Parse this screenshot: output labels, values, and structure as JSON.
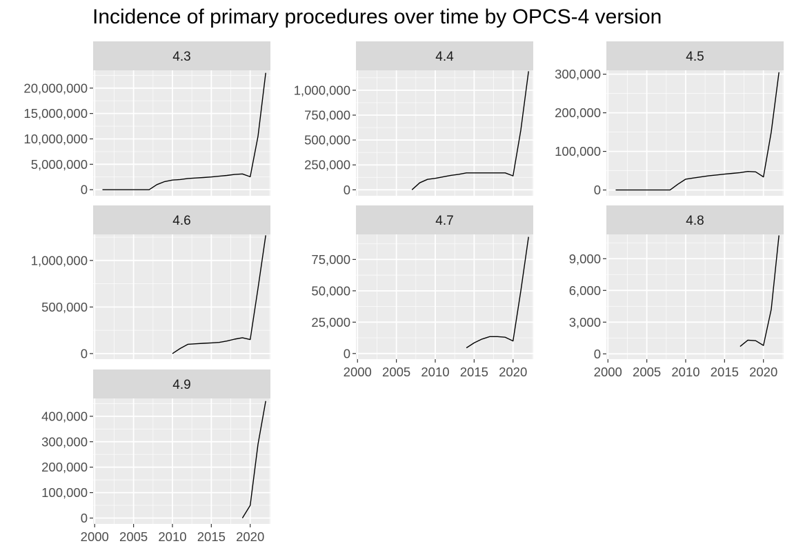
{
  "chart_data": {
    "type": "line",
    "title": "Incidence of primary procedures over time by OPCS-4 version",
    "xlabel": "",
    "ylabel": "",
    "facet_layout": "3 columns, wrapped",
    "shared_x_axis": true,
    "xlim": [
      1999.8,
      2022.6
    ],
    "x_ticks": [
      2000,
      2005,
      2010,
      2015,
      2020
    ],
    "x_tick_labels": [
      "2000",
      "2005",
      "2010",
      "2015",
      "2020"
    ],
    "grid": true,
    "legend": "none",
    "colors": {
      "panel_background": "#EBEBEB",
      "strip_background": "#D9D9D9",
      "grid_major": "#FFFFFF",
      "line": "#000000",
      "tick_text": "#4D4D4D"
    },
    "panels": [
      {
        "strip": "4.3",
        "ylim": [
          -1200000,
          23500000
        ],
        "y_ticks": [
          0,
          5000000,
          10000000,
          15000000,
          20000000
        ],
        "y_tick_labels": [
          "0",
          "5,000,000",
          "10,000,000",
          "15,000,000",
          "20,000,000"
        ],
        "x": [
          2001,
          2002,
          2003,
          2004,
          2005,
          2006,
          2007,
          2008,
          2009,
          2010,
          2011,
          2012,
          2013,
          2014,
          2015,
          2016,
          2017,
          2018,
          2019,
          2020,
          2021,
          2022
        ],
        "values": [
          0,
          0,
          0,
          0,
          0,
          0,
          0,
          1000000,
          1600000,
          1900000,
          2000000,
          2200000,
          2300000,
          2400000,
          2500000,
          2650000,
          2800000,
          3000000,
          3100000,
          2550000,
          10500000,
          23000000
        ]
      },
      {
        "strip": "4.4",
        "ylim": [
          -60000,
          1200000
        ],
        "y_ticks": [
          0,
          250000,
          500000,
          750000,
          1000000
        ],
        "y_tick_labels": [
          "0",
          "250,000",
          "500,000",
          "750,000",
          "1,000,000"
        ],
        "x": [
          2007,
          2008,
          2009,
          2010,
          2011,
          2012,
          2013,
          2014,
          2015,
          2016,
          2017,
          2018,
          2019,
          2020,
          2021,
          2022
        ],
        "values": [
          0,
          70000,
          105000,
          115000,
          130000,
          145000,
          155000,
          170000,
          170000,
          170000,
          170000,
          170000,
          170000,
          140000,
          600000,
          1190000
        ]
      },
      {
        "strip": "4.5",
        "ylim": [
          -15000,
          310000
        ],
        "y_ticks": [
          0,
          100000,
          200000,
          300000
        ],
        "y_tick_labels": [
          "0",
          "100,000",
          "200,000",
          "300,000"
        ],
        "x": [
          2001,
          2002,
          2003,
          2004,
          2005,
          2006,
          2007,
          2008,
          2009,
          2010,
          2011,
          2012,
          2013,
          2014,
          2015,
          2016,
          2017,
          2018,
          2019,
          2020,
          2021,
          2022
        ],
        "values": [
          0,
          0,
          0,
          0,
          0,
          0,
          0,
          0,
          15000,
          28000,
          31000,
          34000,
          37000,
          39000,
          41000,
          43000,
          45000,
          48000,
          47000,
          34000,
          150000,
          305000
        ]
      },
      {
        "strip": "4.6",
        "ylim": [
          -60000,
          1280000
        ],
        "y_ticks": [
          0,
          500000,
          1000000
        ],
        "y_tick_labels": [
          "0",
          "500,000",
          "1,000,000"
        ],
        "x": [
          2010,
          2011,
          2012,
          2013,
          2014,
          2015,
          2016,
          2017,
          2018,
          2019,
          2020,
          2021,
          2022
        ],
        "values": [
          0,
          55000,
          100000,
          105000,
          110000,
          115000,
          120000,
          135000,
          155000,
          170000,
          150000,
          700000,
          1270000
        ]
      },
      {
        "strip": "4.7",
        "ylim": [
          -4500,
          95000
        ],
        "y_ticks": [
          0,
          25000,
          50000,
          75000
        ],
        "y_tick_labels": [
          "0",
          "25,000",
          "50,000",
          "75,000"
        ],
        "x": [
          2014,
          2015,
          2016,
          2017,
          2018,
          2019,
          2020,
          2021,
          2022
        ],
        "values": [
          4500,
          8500,
          11500,
          13500,
          13500,
          13000,
          10000,
          50000,
          93000
        ]
      },
      {
        "strip": "4.8",
        "ylim": [
          -500,
          11300
        ],
        "y_ticks": [
          0,
          3000,
          6000,
          9000
        ],
        "y_tick_labels": [
          "0",
          "3,000",
          "6,000",
          "9,000"
        ],
        "x": [
          2017,
          2018,
          2019,
          2020,
          2021,
          2022
        ],
        "values": [
          700,
          1300,
          1250,
          800,
          4200,
          11200
        ]
      },
      {
        "strip": "4.9",
        "ylim": [
          -23000,
          470000
        ],
        "y_ticks": [
          0,
          100000,
          200000,
          300000,
          400000
        ],
        "y_tick_labels": [
          "0",
          "100,000",
          "200,000",
          "300,000",
          "400,000"
        ],
        "x": [
          2019,
          2020,
          2021,
          2022
        ],
        "values": [
          0,
          50000,
          290000,
          460000
        ]
      }
    ]
  }
}
